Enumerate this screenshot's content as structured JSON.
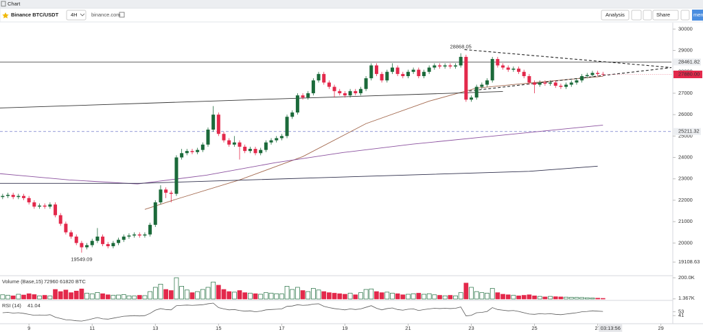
{
  "header": {
    "title": "Chart",
    "symbol": "Binance BTC/USDT",
    "interval": "4H",
    "source": "binance.com",
    "buttons": [
      "Analysis",
      "Share"
    ],
    "menu": "men"
  },
  "chart_data": {
    "type": "candlestick",
    "xlim": [
      -0.5,
      127
    ],
    "xticks": [
      {
        "value": 5,
        "label": "9"
      },
      {
        "value": 17,
        "label": "11"
      },
      {
        "value": 29,
        "label": "13"
      },
      {
        "value": 41,
        "label": "15"
      },
      {
        "value": 53,
        "label": "17"
      },
      {
        "value": 65,
        "label": "19"
      },
      {
        "value": 77,
        "label": "21"
      },
      {
        "value": 89,
        "label": "23"
      },
      {
        "value": 101,
        "label": "25"
      },
      {
        "value": 113,
        "label": "27"
      },
      {
        "value": 125,
        "label": "29"
      }
    ],
    "countdown": "03:13:56",
    "ylim": [
      18600,
      30300
    ],
    "yticks": [
      20000,
      21000,
      22000,
      23000,
      24000,
      25000,
      26000,
      27000,
      28000,
      29000,
      30000,
      19108.63
    ],
    "up_color": "#1b6a3a",
    "down_color": "#e3294b",
    "open": [
      22150,
      22200,
      22250,
      22150,
      22200,
      22100,
      21900,
      21700,
      21750,
      21700,
      21800,
      21300,
      20900,
      20500,
      20300,
      20000,
      19800,
      19900,
      20100,
      20300,
      19950,
      19850,
      20000,
      20150,
      20300,
      20350,
      20400,
      20350,
      20400,
      20850,
      21900,
      22500,
      22350,
      22300,
      24000,
      24200,
      24300,
      24250,
      24350,
      24600,
      25300,
      26000,
      25100,
      24800,
      24600,
      24700,
      24500,
      24300,
      24400,
      24200,
      24350,
      24700,
      24800,
      24900,
      25000,
      25900,
      26100,
      26900,
      26800,
      27000,
      27600,
      27900,
      27500,
      27300,
      27100,
      27000,
      26900,
      27100,
      27000,
      27200,
      27700,
      28300,
      27900,
      27600,
      28000,
      28200,
      27900,
      27800,
      28000,
      28100,
      27800,
      28000,
      28200,
      28300,
      28250,
      28300,
      28250,
      28300,
      28700,
      26700,
      26800,
      27300,
      27400,
      27600,
      28600,
      28300,
      28200,
      28100,
      28150,
      28000,
      27800,
      27500,
      27400,
      27500,
      27450,
      27500,
      27350,
      27300,
      27400,
      27500,
      27600,
      27800,
      27850,
      27950,
      27900
    ],
    "high": [
      22300,
      22350,
      22350,
      22300,
      22300,
      22200,
      22000,
      21850,
      21850,
      21900,
      21900,
      21400,
      21000,
      20600,
      20400,
      20100,
      20000,
      20200,
      20700,
      20400,
      20050,
      20100,
      20250,
      20400,
      20450,
      20500,
      20500,
      20500,
      20950,
      22000,
      22700,
      22600,
      22450,
      24100,
      24400,
      24400,
      24400,
      24450,
      24700,
      25400,
      26400,
      26100,
      25200,
      24900,
      25000,
      24800,
      24600,
      24500,
      24500,
      24450,
      24800,
      24900,
      25000,
      25100,
      26000,
      26200,
      27000,
      27000,
      27100,
      27700,
      28000,
      28000,
      27600,
      27400,
      27200,
      27100,
      27200,
      27200,
      27300,
      27800,
      28400,
      28400,
      28000,
      28100,
      28400,
      28300,
      28000,
      28100,
      28200,
      28200,
      28100,
      28300,
      28400,
      28400,
      28400,
      28400,
      28400,
      28868.05,
      28800,
      26900,
      27400,
      27500,
      27700,
      28700,
      28700,
      28400,
      28300,
      28250,
      28250,
      28100,
      27900,
      27600,
      27600,
      27600,
      27600,
      27600,
      27450,
      27500,
      27600,
      27700,
      27900,
      27950,
      28050,
      28050,
      28000
    ],
    "low": [
      22050,
      22100,
      22050,
      22050,
      22000,
      21800,
      21600,
      21600,
      21600,
      21600,
      21200,
      20800,
      20400,
      20200,
      19900,
      19549.09,
      19700,
      19800,
      20000,
      19850,
      19750,
      19750,
      19900,
      20050,
      20200,
      20250,
      20250,
      20250,
      20300,
      20750,
      21800,
      22100,
      21900,
      22200,
      23900,
      24100,
      24150,
      24150,
      24250,
      24500,
      25200,
      25000,
      24700,
      24500,
      24500,
      23900,
      24200,
      24200,
      24100,
      24100,
      24250,
      24600,
      24700,
      24800,
      24900,
      25800,
      26000,
      26700,
      26700,
      26900,
      27500,
      27400,
      27200,
      26800,
      26900,
      26800,
      26800,
      26900,
      26900,
      27100,
      27600,
      27800,
      27500,
      27500,
      27900,
      27800,
      27700,
      27700,
      27900,
      27700,
      27700,
      27900,
      28100,
      28150,
      28150,
      28150,
      28150,
      28200,
      26600,
      26600,
      26700,
      27200,
      27300,
      27500,
      28200,
      28100,
      28000,
      28000,
      27900,
      27700,
      27400,
      27000,
      27300,
      27350,
      27350,
      27250,
      27200,
      27200,
      27300,
      27400,
      27500,
      27700,
      27750,
      27800,
      27800
    ],
    "close": [
      22200,
      22250,
      22150,
      22200,
      22100,
      21900,
      21700,
      21750,
      21700,
      21800,
      21300,
      20900,
      20500,
      20300,
      20000,
      19800,
      19900,
      20100,
      20300,
      19950,
      19850,
      20000,
      20150,
      20300,
      20350,
      20400,
      20350,
      20400,
      20850,
      21900,
      22500,
      22350,
      22300,
      24000,
      24200,
      24300,
      24250,
      24350,
      24600,
      25300,
      26000,
      25100,
      24800,
      24600,
      24700,
      24500,
      24300,
      24400,
      24200,
      24350,
      24700,
      24800,
      24900,
      25000,
      25900,
      26100,
      26900,
      26800,
      27000,
      27600,
      27900,
      27500,
      27300,
      27100,
      27000,
      26900,
      27100,
      27000,
      27200,
      27700,
      28300,
      27900,
      27600,
      28000,
      28200,
      27900,
      27800,
      28000,
      28100,
      27800,
      28000,
      28200,
      28300,
      28250,
      28300,
      28250,
      28300,
      28700,
      26700,
      26800,
      27300,
      27400,
      27600,
      28600,
      28300,
      28200,
      28100,
      28150,
      28000,
      27800,
      27500,
      27400,
      27500,
      27450,
      27500,
      27350,
      27300,
      27400,
      27500,
      27600,
      27800,
      27850,
      27950,
      27900,
      27880
    ],
    "last_label": "27880.00",
    "hlines": [
      {
        "value": 28461.82,
        "color": "#333333",
        "dashed": false
      },
      {
        "value": 25211.32,
        "color": "#6f77c9",
        "dashed": true
      }
    ],
    "trendlines": [
      {
        "x": [
          -0.5,
          95
        ],
        "y": [
          26310,
          27080
        ],
        "color": "#333333",
        "dashed": false
      },
      {
        "x": [
          87.7,
          127
        ],
        "y": [
          29040,
          28200
        ],
        "color": "#222222",
        "dashed": true
      },
      {
        "x": [
          87.7,
          127
        ],
        "y": [
          27080,
          28200
        ],
        "color": "#222222",
        "dashed": true
      }
    ],
    "moving_averages": [
      {
        "color": "#a2674c",
        "x": [
          27,
          33,
          45,
          57,
          69,
          81,
          90,
          101,
          114
        ],
        "values": [
          21570,
          22050,
          22950,
          24040,
          25580,
          26630,
          27240,
          27500,
          27790
        ]
      },
      {
        "color": "#8a4f9e",
        "x": [
          -0.5,
          12.6,
          25.6,
          38.7,
          51.7,
          64.7,
          77.8,
          90.8,
          103.8,
          114
        ],
        "values": [
          23240,
          22950,
          22760,
          23170,
          23750,
          24230,
          24620,
          24940,
          25260,
          25510
        ]
      },
      {
        "color": "#2d2d4a",
        "x": [
          -0.5,
          26,
          60,
          100,
          113
        ],
        "values": [
          22790,
          22790,
          23050,
          23350,
          23590
        ]
      }
    ],
    "volume": {
      "title": "Volume (Base,15)",
      "readout": "72960  61820 BTC",
      "ylim": [
        0,
        200
      ],
      "yticks": [
        {
          "value": 200,
          "label": "200.0K"
        },
        {
          "value": 1.367,
          "label": "1.367K"
        }
      ],
      "values": [
        40,
        35,
        30,
        45,
        38,
        50,
        42,
        30,
        35,
        28,
        90,
        70,
        85,
        60,
        75,
        95,
        55,
        48,
        62,
        50,
        40,
        35,
        38,
        42,
        30,
        28,
        35,
        32,
        70,
        110,
        140,
        90,
        80,
        200,
        120,
        85,
        60,
        70,
        90,
        110,
        160,
        130,
        90,
        70,
        65,
        80,
        60,
        55,
        50,
        45,
        60,
        55,
        50,
        48,
        120,
        90,
        110,
        80,
        70,
        100,
        85,
        70,
        60,
        55,
        50,
        45,
        55,
        40,
        60,
        90,
        95,
        70,
        60,
        65,
        55,
        50,
        40,
        45,
        50,
        55,
        45,
        50,
        40,
        35,
        30,
        35,
        30,
        60,
        150,
        110,
        70,
        60,
        55,
        100,
        60,
        45,
        40,
        35,
        30,
        35,
        40,
        30,
        25,
        20,
        25,
        22,
        20,
        18,
        16,
        15,
        14,
        12,
        10,
        8,
        6
      ]
    },
    "rsi": {
      "title": "RSI (14)",
      "readout": 41.04,
      "color": "#555555",
      "ylim": [
        20,
        80
      ],
      "yticks": [
        53,
        41
      ],
      "values": [
        50,
        51,
        49,
        50,
        48,
        45,
        42,
        43,
        42,
        44,
        36,
        32,
        28,
        27,
        25,
        24,
        27,
        31,
        35,
        31,
        30,
        33,
        36,
        39,
        40,
        41,
        40,
        41,
        48,
        58,
        63,
        60,
        59,
        72,
        73,
        74,
        73,
        74,
        75,
        78,
        80,
        66,
        62,
        59,
        60,
        57,
        55,
        56,
        53,
        55,
        59,
        60,
        61,
        62,
        70,
        71,
        75,
        73,
        74,
        77,
        78,
        70,
        66,
        63,
        61,
        59,
        62,
        60,
        62,
        67,
        72,
        64,
        59,
        63,
        65,
        60,
        58,
        61,
        62,
        57,
        60,
        62,
        64,
        63,
        64,
        63,
        64,
        68,
        40,
        42,
        50,
        51,
        54,
        66,
        60,
        58,
        56,
        57,
        54,
        50,
        46,
        45,
        47,
        46,
        47,
        45,
        44,
        46,
        48,
        50,
        53,
        54,
        56,
        55,
        54
      ]
    }
  }
}
